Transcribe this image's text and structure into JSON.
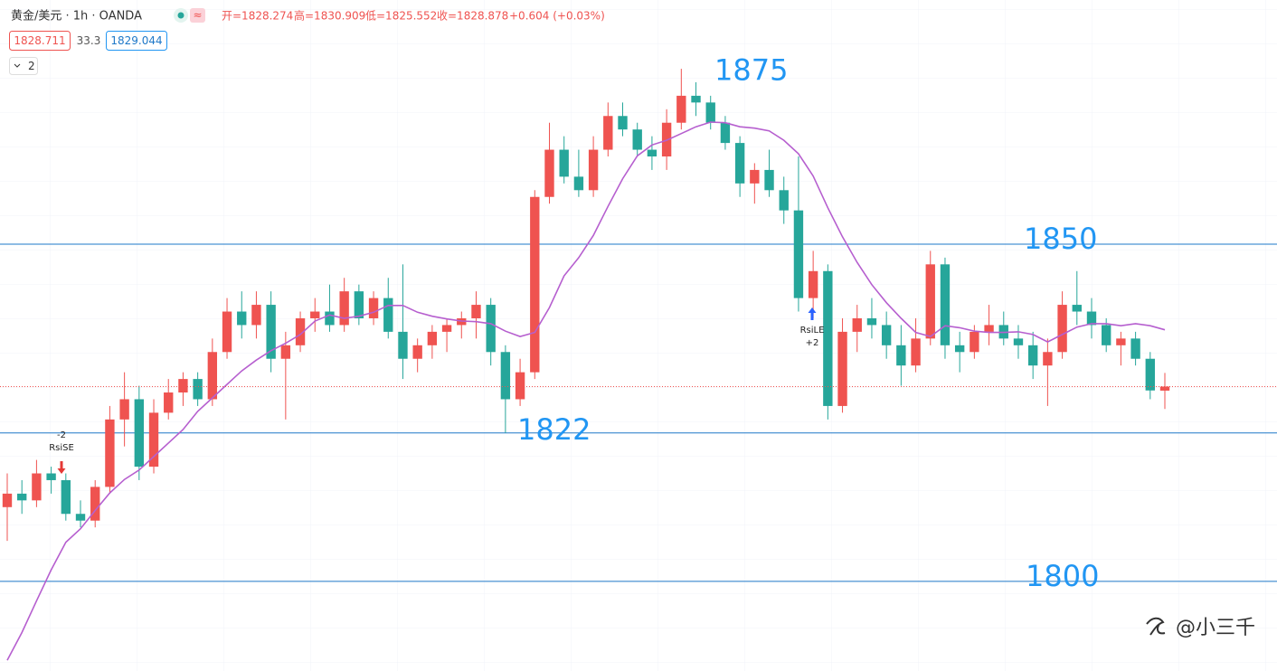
{
  "header": {
    "symbol": "黄金/美元 · 1h · OANDA",
    "open": "开=1828.274",
    "high": "高=1830.909",
    "low": "低=1825.552",
    "close": "收=1828.878",
    "change": "+0.604 (+0.03%)",
    "bid": "1828.711",
    "spread": "33.3",
    "ask": "1829.044",
    "indicators": "2"
  },
  "chart_data": {
    "type": "candlestick",
    "ylim": [
      1786.7,
      1886.2
    ],
    "up_color": "#ef5350",
    "down_color": "#26a69a",
    "ma_color": "#b65fcf",
    "level_color": "#1e78c8",
    "open": [
      1811,
      1813,
      1812,
      1816,
      1815,
      1810,
      1809,
      1814,
      1824,
      1827,
      1817,
      1825,
      1828,
      1830,
      1827,
      1834,
      1840,
      1838,
      1841,
      1833,
      1835,
      1839,
      1840,
      1838,
      1843,
      1839,
      1842,
      1837,
      1833,
      1835,
      1837,
      1838,
      1839,
      1841,
      1834,
      1827,
      1831,
      1857,
      1864,
      1860,
      1858,
      1864,
      1869,
      1867,
      1864,
      1863,
      1868,
      1872,
      1871,
      1868,
      1865,
      1859,
      1861,
      1858,
      1855,
      1842,
      1846,
      1826,
      1837,
      1839,
      1838,
      1835,
      1832,
      1836,
      1847,
      1835,
      1834,
      1837,
      1838,
      1836,
      1835,
      1832,
      1834,
      1841,
      1840,
      1838,
      1835,
      1836,
      1833,
      1828.274
    ],
    "high": [
      1816,
      1815,
      1818,
      1817,
      1816,
      1812,
      1815,
      1826,
      1831,
      1829,
      1827,
      1830,
      1831,
      1831,
      1836,
      1842,
      1843,
      1843,
      1843,
      1837,
      1840,
      1842,
      1844,
      1845,
      1844,
      1843,
      1845,
      1847,
      1836,
      1838,
      1839,
      1840,
      1843,
      1842,
      1835,
      1833,
      1858,
      1868,
      1866,
      1864,
      1866,
      1871,
      1871,
      1868,
      1866,
      1870,
      1876,
      1874,
      1872,
      1869,
      1866,
      1862,
      1864,
      1860,
      1863,
      1849,
      1847,
      1839,
      1841,
      1842,
      1840,
      1838,
      1839,
      1849,
      1848,
      1837,
      1838,
      1841,
      1840,
      1838,
      1837,
      1836,
      1843,
      1846,
      1842,
      1839,
      1837,
      1837,
      1834,
      1830.909
    ],
    "low": [
      1806,
      1810,
      1811,
      1813,
      1809,
      1808,
      1808,
      1813,
      1820,
      1815,
      1816,
      1824,
      1826,
      1826,
      1826,
      1833,
      1836,
      1836,
      1831,
      1824,
      1834,
      1837,
      1837,
      1837,
      1838,
      1838,
      1836,
      1830,
      1831,
      1833,
      1834,
      1836,
      1836,
      1832,
      1822,
      1826,
      1830,
      1856,
      1859,
      1857,
      1857,
      1863,
      1866,
      1863,
      1861,
      1861,
      1867,
      1869,
      1867,
      1864,
      1857,
      1856,
      1857,
      1853,
      1840,
      1839,
      1824,
      1825,
      1834,
      1836,
      1833,
      1829,
      1831,
      1835,
      1833,
      1831,
      1833,
      1835,
      1835,
      1833,
      1830,
      1826,
      1833,
      1838,
      1836,
      1834,
      1832,
      1832,
      1827,
      1825.552
    ],
    "close": [
      1813,
      1812,
      1816,
      1815,
      1810,
      1809,
      1814,
      1824,
      1827,
      1817,
      1825,
      1828,
      1830,
      1827,
      1834,
      1840,
      1838,
      1841,
      1833,
      1835,
      1839,
      1840,
      1838,
      1843,
      1839,
      1842,
      1837,
      1833,
      1835,
      1837,
      1838,
      1839,
      1841,
      1834,
      1827,
      1831,
      1857,
      1864,
      1860,
      1858,
      1864,
      1869,
      1867,
      1864,
      1863,
      1868,
      1872,
      1871,
      1868,
      1865,
      1859,
      1861,
      1858,
      1855,
      1842,
      1846,
      1826,
      1837,
      1839,
      1838,
      1835,
      1832,
      1836,
      1847,
      1835,
      1834,
      1837,
      1838,
      1836,
      1835,
      1832,
      1834,
      1841,
      1840,
      1838,
      1835,
      1836,
      1833,
      1828.3,
      1828.878
    ],
    "ma": [
      1788.3,
      1792.4,
      1797.1,
      1801.7,
      1805.8,
      1807.8,
      1810.5,
      1813.1,
      1815.1,
      1816.5,
      1818.5,
      1820.5,
      1822.5,
      1825.2,
      1827.2,
      1829.2,
      1831.2,
      1832.8,
      1834.2,
      1835.3,
      1836.6,
      1838.6,
      1839.5,
      1839.0,
      1839.3,
      1839.9,
      1840.9,
      1840.9,
      1839.9,
      1839.3,
      1838.9,
      1838.6,
      1838.5,
      1838.2,
      1837.1,
      1836.3,
      1836.9,
      1840.6,
      1845.3,
      1848.0,
      1851.3,
      1855.6,
      1859.7,
      1863.1,
      1864.7,
      1865.4,
      1866.4,
      1867.4,
      1868.1,
      1868.0,
      1867.4,
      1867.2,
      1866.8,
      1865.4,
      1863.4,
      1860.1,
      1855.4,
      1851.1,
      1847.3,
      1844.0,
      1841.3,
      1839.0,
      1836.9,
      1836.3,
      1837.9,
      1837.6,
      1837.1,
      1836.9,
      1836.9,
      1837.0,
      1836.6,
      1835.5,
      1836.6,
      1837.7,
      1838.2,
      1838.2,
      1837.9,
      1838.2,
      1837.9,
      1837.3
    ],
    "levels": [
      {
        "value": 1875,
        "line": false
      },
      {
        "value": 1850,
        "line": true
      },
      {
        "value": 1822,
        "line": true
      },
      {
        "value": 1800,
        "line": true
      }
    ],
    "signals": [
      {
        "qty": "-2",
        "label": "RsiSE"
      },
      {
        "label": "RsiLE",
        "qty": "+2"
      }
    ],
    "watermark": "@小三千"
  }
}
